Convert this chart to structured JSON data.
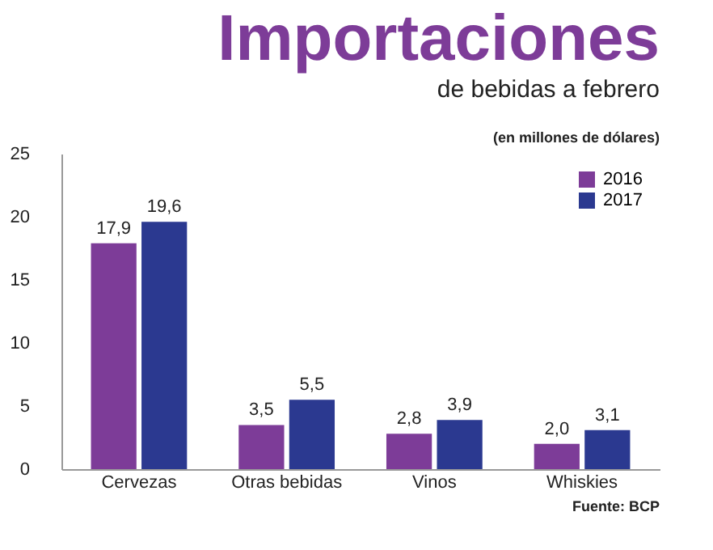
{
  "chart_data": {
    "type": "bar",
    "title": "Importaciones",
    "subtitle": "de bebidas a febrero",
    "annotations": [
      "(en millones de dólares)",
      "Fuente: BCP"
    ],
    "categories": [
      "Cervezas",
      "Otras bebidas",
      "Vinos",
      "Whiskies"
    ],
    "series": [
      {
        "name": "2016",
        "color": "#7d3c98",
        "values": [
          17.9,
          3.5,
          2.8,
          2.0
        ],
        "value_labels": [
          "17,9",
          "3,5",
          "2,8",
          "2,0"
        ]
      },
      {
        "name": "2017",
        "color": "#2b3990",
        "values": [
          19.6,
          5.5,
          3.9,
          3.1
        ],
        "value_labels": [
          "19,6",
          "5,5",
          "3,9",
          "3,1"
        ]
      }
    ],
    "ylim": [
      0,
      25
    ],
    "yticks": [
      0,
      5,
      10,
      15,
      20,
      25
    ],
    "grid": false,
    "legend": "top right"
  }
}
